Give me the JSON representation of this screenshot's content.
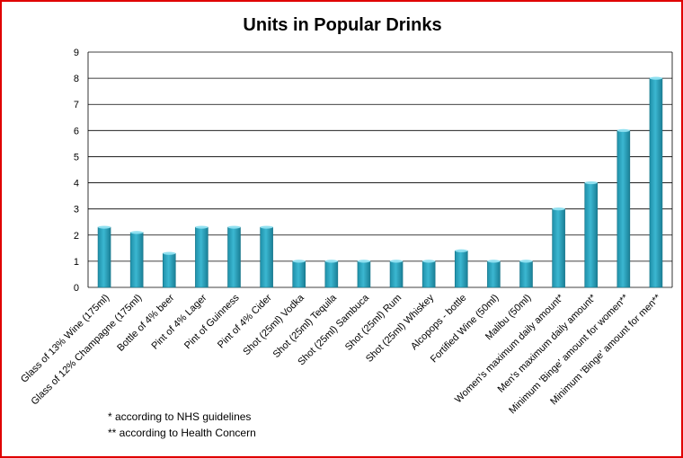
{
  "chart_data": {
    "type": "bar",
    "title": "Units in Popular Drinks",
    "xlabel": "",
    "ylabel": "",
    "ylim": [
      0,
      9
    ],
    "yticks": [
      0,
      1,
      2,
      3,
      4,
      5,
      6,
      7,
      8,
      9
    ],
    "grid": true,
    "legend": "none",
    "bar_color": "#3bb7d1",
    "categories": [
      "Glass of 13% Wine (175ml)",
      "Glass of 12% Champagne (175ml)",
      "Bottle of 4% beer",
      "Pint of 4% Lager",
      "Pint of Guinness",
      "Pint of 4% Cider",
      "Shot (25ml) Vodka",
      "Shot (25ml) Tequila",
      "Shot (25ml) Sambuca",
      "Shot (25ml) Rum",
      "Shot (25ml) Whiskey",
      "Alcopops - bottle",
      "Fortified Wine (50ml)",
      "Malibu (50ml)",
      "Women's maximum daily amount*",
      "Men's maximum daily amount*",
      "Minimum 'Binge' amount for women**",
      "Minimum 'Binge' amount for men**"
    ],
    "values": [
      2.3,
      2.1,
      1.3,
      2.3,
      2.3,
      2.3,
      1.0,
      1.0,
      1.0,
      1.0,
      1.0,
      1.4,
      1.0,
      1.0,
      3.0,
      4.0,
      6.0,
      8.0
    ]
  },
  "notes": [
    "* according to NHS guidelines",
    "** according to Health Concern"
  ]
}
